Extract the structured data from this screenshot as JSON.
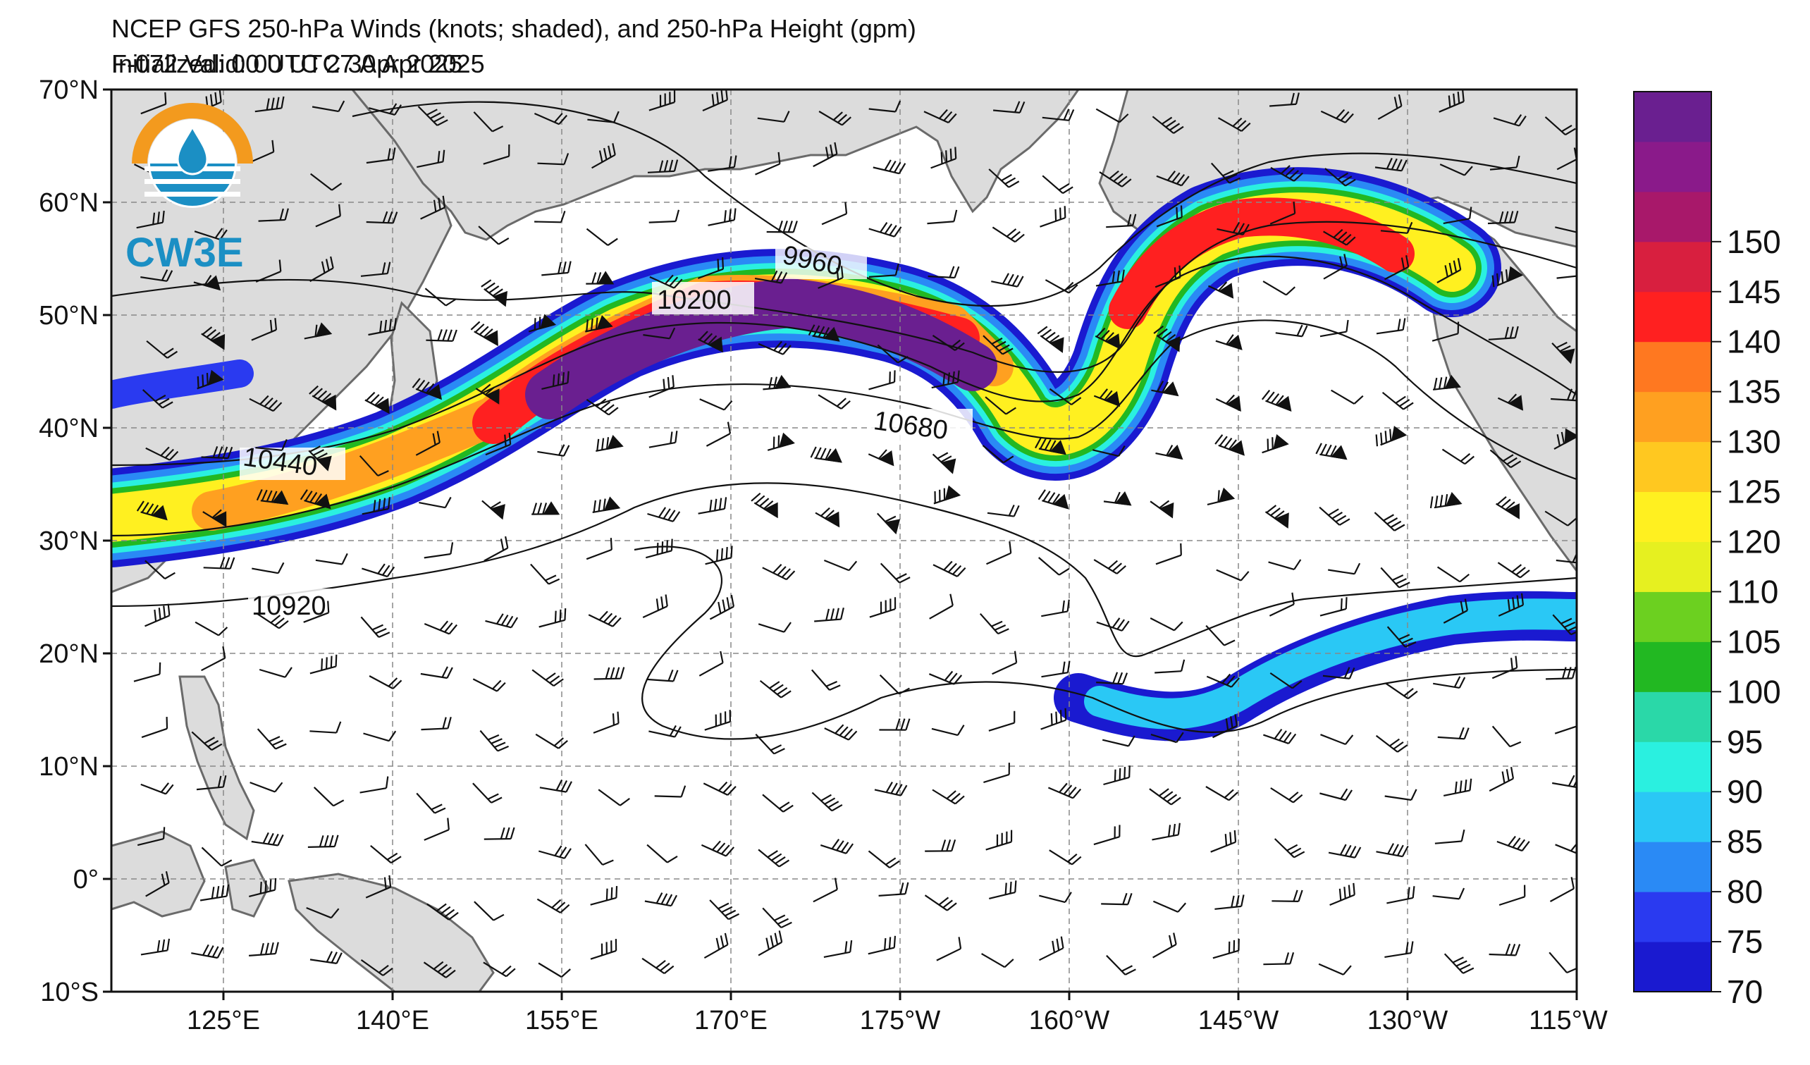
{
  "header": {
    "title": "NCEP GFS 250-hPa Winds (knots; shaded), and 250-hPa Height (gpm)",
    "initialized": "Initialized: 00 UTC 27 Apr 2025",
    "valid": "F-072  Valid: 00 UTC 30 Apr 2025"
  },
  "logo": {
    "text": "CW3E"
  },
  "axes": {
    "lat_labels": [
      "70°N",
      "60°N",
      "50°N",
      "40°N",
      "30°N",
      "20°N",
      "10°N",
      "0°",
      "10°S"
    ],
    "lon_labels": [
      "125°E",
      "140°E",
      "155°E",
      "170°E",
      "175°W",
      "160°W",
      "145°W",
      "130°W",
      "115°W"
    ]
  },
  "contour_labels": [
    "9960",
    "10200",
    "10440",
    "10680",
    "10920"
  ],
  "colorbar": {
    "tick_labels": [
      "70",
      "75",
      "80",
      "85",
      "90",
      "95",
      "100",
      "105",
      "110",
      "120",
      "125",
      "130",
      "135",
      "140",
      "145",
      "150"
    ],
    "colors": [
      "#1a1ad0",
      "#2a3af0",
      "#2a8af5",
      "#2ac8f5",
      "#2af0e0",
      "#2ad8a8",
      "#22b822",
      "#6cd020",
      "#e6f020",
      "#fff020",
      "#ffc820",
      "#ffa020",
      "#ff7820",
      "#ff2020",
      "#d81f3f",
      "#a8186a",
      "#8a1a8a",
      "#6a1f90"
    ]
  },
  "colors": {
    "land": "#dcdcdc",
    "coast": "#6a6a6a",
    "grid": "#888888",
    "contour": "#111111"
  }
}
